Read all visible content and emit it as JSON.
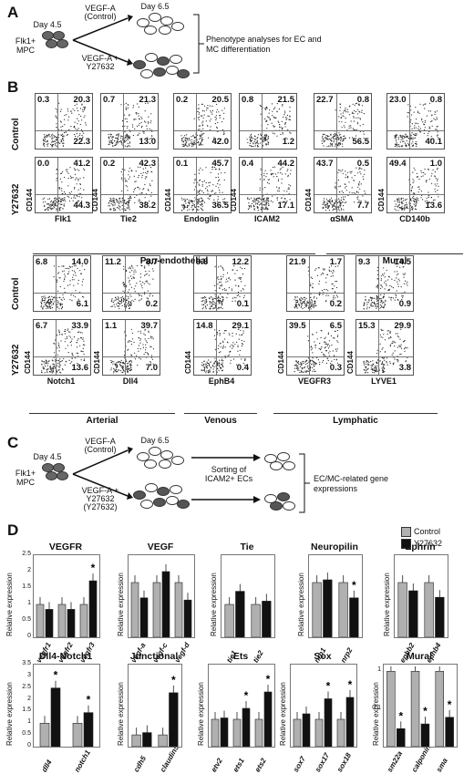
{
  "panelA": {
    "letter": "A",
    "day_start": "Day 4.5",
    "day_end": "Day 6.5",
    "cell_label": "Flk1+ MPC",
    "arrow_top": "VEGF-A (Control)",
    "arrow_bottom": "VEGF-A + Y27632",
    "outcome": "Phenotype analyses for EC and MC differentiation"
  },
  "panelB": {
    "letter": "B",
    "rows": [
      "Control",
      "Y27632",
      "Control",
      "Y27632"
    ],
    "yaxis": "CD144",
    "top_markers": [
      "Flk1",
      "Tie2",
      "Endoglin",
      "ICAM2",
      "αSMA",
      "CD140b"
    ],
    "top_control": [
      [
        "0.3",
        "20.3",
        "22.3"
      ],
      [
        "0.7",
        "21.3",
        "13.0"
      ],
      [
        "0.2",
        "20.5",
        "42.0"
      ],
      [
        "0.8",
        "21.5",
        "1.2"
      ],
      [
        "22.7",
        "0.8",
        "56.5"
      ],
      [
        "23.0",
        "0.8",
        "40.1"
      ]
    ],
    "top_y27632": [
      [
        "0.0",
        "41.2",
        "44.3"
      ],
      [
        "0.2",
        "42.3",
        "38.2"
      ],
      [
        "0.1",
        "45.7",
        "36.5"
      ],
      [
        "0.4",
        "44.2",
        "17.1"
      ],
      [
        "43.7",
        "0.5",
        "7.7"
      ],
      [
        "49.4",
        "1.0",
        "13.6"
      ]
    ],
    "bottom_markers": [
      "Notch1",
      "Dll4",
      "EphB4",
      "VEGFR3",
      "LYVE1"
    ],
    "bottom_control": [
      [
        "6.8",
        "14.0",
        "6.1"
      ],
      [
        "11.2",
        "8.7",
        "0.2"
      ],
      [
        "9.8",
        "12.2",
        "0.1"
      ],
      [
        "21.9",
        "1.7",
        "0.2"
      ],
      [
        "9.3",
        "14.5",
        "0.9"
      ]
    ],
    "bottom_y27632": [
      [
        "6.7",
        "33.9",
        "13.6"
      ],
      [
        "1.1",
        "39.7",
        "7.0"
      ],
      [
        "14.8",
        "29.1",
        "0.4"
      ],
      [
        "39.5",
        "6.5",
        "0.3"
      ],
      [
        "15.3",
        "29.9",
        "3.8"
      ]
    ],
    "groups_top": [
      "Pan-endothelial",
      "Mural"
    ],
    "groups_bottom": [
      "Arterial",
      "Venous",
      "Lymphatic"
    ]
  },
  "panelC": {
    "letter": "C",
    "day_start": "Day 4.5",
    "day_end": "Day 6.5",
    "cell_label": "Flk1+ MPC",
    "arrow_top": "VEGF-A (Control)",
    "arrow_bottom": "VEGF-A + Y27632 (Y27632)",
    "sorting": "Sorting of ICAM2+ ECs",
    "outcome": "EC/MC-related gene expressions"
  },
  "panelD": {
    "letter": "D",
    "ylabel": "Relative expression",
    "legend": {
      "control": "Control",
      "treated": "Y27632"
    },
    "colors": {
      "control": "#b0b0b0",
      "treated": "#111111"
    }
  },
  "chart_data": [
    {
      "type": "bar",
      "title": "VEGFR",
      "categories": [
        "vegfr1",
        "vegfr2",
        "vegfr3"
      ],
      "series": [
        {
          "name": "Control",
          "values": [
            1,
            1,
            1
          ]
        },
        {
          "name": "Y27632",
          "values": [
            0.85,
            0.85,
            1.72
          ]
        }
      ],
      "ylim": [
        0,
        2.5
      ],
      "yticks": [
        "0",
        "0.5",
        "1",
        "1.5",
        "2",
        "2.5"
      ],
      "sig": [
        false,
        false,
        true
      ]
    },
    {
      "type": "bar",
      "title": "VEGF",
      "categories": [
        "vegf-a",
        "vegf-c",
        "vegf-d"
      ],
      "series": [
        {
          "name": "Control",
          "values": [
            1,
            1,
            1
          ]
        },
        {
          "name": "Y27632",
          "values": [
            0.72,
            1.2,
            0.68
          ]
        }
      ],
      "ylim": [
        0,
        1.5
      ],
      "yticks": [],
      "sig": [
        false,
        false,
        false
      ]
    },
    {
      "type": "bar",
      "title": "Tie",
      "categories": [
        "tie1",
        "tie2"
      ],
      "series": [
        {
          "name": "Control",
          "values": [
            1,
            1
          ]
        },
        {
          "name": "Y27632",
          "values": [
            1.4,
            1.1
          ]
        }
      ],
      "ylim": [
        0,
        2.5
      ],
      "yticks": [],
      "sig": [
        false,
        false
      ]
    },
    {
      "type": "bar",
      "title": "Neuropilin",
      "categories": [
        "nrp1",
        "nrp2"
      ],
      "series": [
        {
          "name": "Control",
          "values": [
            1,
            1
          ]
        },
        {
          "name": "Y27632",
          "values": [
            1.05,
            0.72
          ]
        }
      ],
      "ylim": [
        0,
        1.5
      ],
      "yticks": [],
      "sig": [
        false,
        true
      ]
    },
    {
      "type": "bar",
      "title": "Ephrin",
      "categories": [
        "ephb2",
        "ephb4"
      ],
      "series": [
        {
          "name": "Control",
          "values": [
            1,
            1
          ]
        },
        {
          "name": "Y27632",
          "values": [
            0.85,
            0.73
          ]
        }
      ],
      "ylim": [
        0,
        1.5
      ],
      "yticks": [],
      "sig": [
        false,
        false
      ]
    },
    {
      "type": "bar",
      "title": "Dll4-Notch1",
      "categories": [
        "dll4",
        "notch1"
      ],
      "series": [
        {
          "name": "Control",
          "values": [
            1,
            1
          ]
        },
        {
          "name": "Y27632",
          "values": [
            2.5,
            1.45
          ]
        }
      ],
      "ylim": [
        0,
        3.5
      ],
      "yticks": [
        "0",
        "0.5",
        "1",
        "1.5",
        "2",
        "2.5",
        "3",
        "3.5"
      ],
      "sig": [
        true,
        true
      ]
    },
    {
      "type": "bar",
      "title": "Junctional",
      "categories": [
        "cdh5",
        "claudin5"
      ],
      "series": [
        {
          "name": "Control",
          "values": [
            1,
            1
          ]
        },
        {
          "name": "Y27632",
          "values": [
            1.2,
            4.6
          ]
        }
      ],
      "ylim": [
        0,
        7
      ],
      "yticks": [],
      "sig": [
        false,
        true
      ]
    },
    {
      "type": "bar",
      "title": "Ets",
      "categories": [
        "etv2",
        "ets1",
        "ets2"
      ],
      "series": [
        {
          "name": "Control",
          "values": [
            1,
            1,
            1
          ]
        },
        {
          "name": "Y27632",
          "values": [
            1.05,
            1.4,
            2.0
          ]
        }
      ],
      "ylim": [
        0,
        3
      ],
      "yticks": [],
      "sig": [
        false,
        true,
        true
      ]
    },
    {
      "type": "bar",
      "title": "Sox",
      "categories": [
        "sox7",
        "sox17",
        "sox18"
      ],
      "series": [
        {
          "name": "Control",
          "values": [
            1,
            1,
            1
          ]
        },
        {
          "name": "Y27632",
          "values": [
            1.2,
            1.75,
            1.8
          ]
        }
      ],
      "ylim": [
        0,
        3
      ],
      "yticks": [],
      "sig": [
        false,
        true,
        true
      ]
    },
    {
      "type": "bar",
      "title": "Mural",
      "categories": [
        "sm22a",
        "calponin",
        "sma"
      ],
      "series": [
        {
          "name": "Control",
          "values": [
            1,
            1,
            1
          ]
        },
        {
          "name": "Y27632",
          "values": [
            0.03,
            0.04,
            0.06
          ]
        }
      ],
      "ylim": [
        0.01,
        1.5
      ],
      "yscale": "log",
      "yticks": [
        "0.1",
        "1"
      ],
      "sig": [
        true,
        true,
        true
      ]
    }
  ]
}
